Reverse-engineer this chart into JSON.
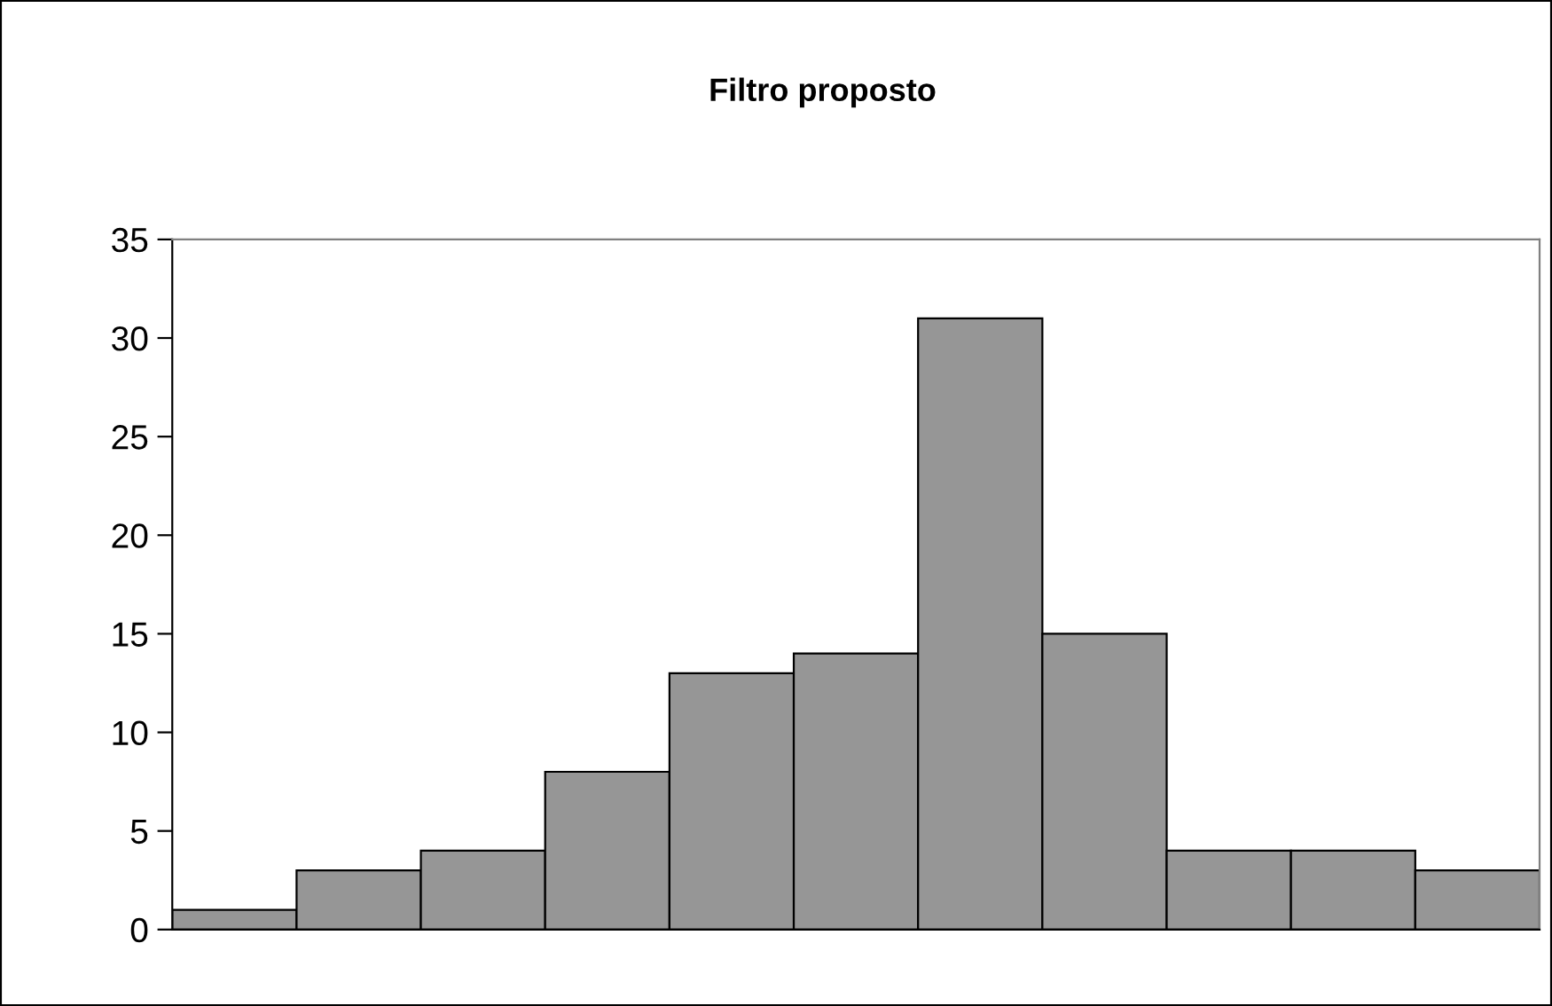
{
  "chart_data": {
    "type": "bar",
    "title": "Filtro proposto",
    "categories": [
      null,
      null,
      null,
      null,
      null,
      null,
      null,
      null,
      null,
      null,
      null
    ],
    "values": [
      1,
      3,
      4,
      8,
      13,
      14,
      31,
      15,
      4,
      4,
      3
    ],
    "color": "#969696",
    "ylim": [
      0,
      35
    ],
    "yticks": [
      0,
      5,
      10,
      15,
      20,
      25,
      30,
      35
    ],
    "tick_labels": "y",
    "grid": false,
    "legend": false
  }
}
